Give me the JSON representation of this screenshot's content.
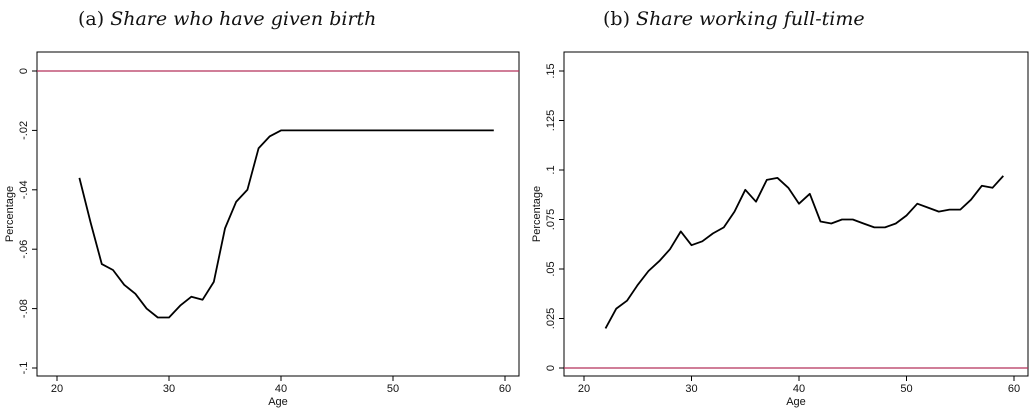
{
  "panels": [
    {
      "label": "(a)",
      "title": "Share who have given birth"
    },
    {
      "label": "(b)",
      "title": "Share working full-time"
    }
  ],
  "colors": {
    "series": "#000000",
    "reference_line": "#b5315a",
    "frame": "#000000"
  },
  "chart_data": [
    {
      "type": "line",
      "title": "Share who have given birth",
      "xlabel": "Age",
      "ylabel": "Percentage",
      "xlim": [
        20,
        60
      ],
      "ylim": [
        -0.1,
        0
      ],
      "xticks": [
        20,
        30,
        40,
        50,
        60
      ],
      "xtick_labels": [
        "20",
        "30",
        "40",
        "50",
        "60"
      ],
      "yticks": [
        0,
        -0.02,
        -0.04,
        -0.06,
        -0.08,
        -0.1
      ],
      "ytick_labels": [
        "0",
        "-.02",
        "-.04",
        "-.06",
        "-.08",
        "-.1"
      ],
      "grid": false,
      "reference_line": {
        "y": 0
      },
      "series": [
        {
          "x": [
            22,
            23,
            24,
            25,
            26,
            27,
            28,
            29,
            30,
            31,
            32,
            33,
            34,
            35,
            36,
            37,
            38,
            39,
            40,
            41,
            42,
            43,
            44,
            45,
            46,
            47,
            48,
            49,
            50,
            51,
            52,
            53,
            54,
            55,
            56,
            57,
            58,
            59
          ],
          "values": [
            -0.036,
            -0.051,
            -0.065,
            -0.067,
            -0.072,
            -0.075,
            -0.08,
            -0.083,
            -0.083,
            -0.079,
            -0.076,
            -0.077,
            -0.071,
            -0.053,
            -0.044,
            -0.04,
            -0.026,
            -0.022,
            -0.02,
            -0.02,
            -0.02,
            -0.02,
            -0.02,
            -0.02,
            -0.02,
            -0.02,
            -0.02,
            -0.02,
            -0.02,
            -0.02,
            -0.02,
            -0.02,
            -0.02,
            -0.02,
            -0.02,
            -0.02,
            -0.02,
            -0.02
          ]
        }
      ]
    },
    {
      "type": "line",
      "title": "Share working full-time",
      "xlabel": "Age",
      "ylabel": "Percentage",
      "xlim": [
        20,
        60
      ],
      "ylim": [
        0,
        0.15
      ],
      "xticks": [
        20,
        30,
        40,
        50,
        60
      ],
      "xtick_labels": [
        "20",
        "30",
        "40",
        "50",
        "60"
      ],
      "yticks": [
        0,
        0.025,
        0.05,
        0.075,
        0.1,
        0.125,
        0.15
      ],
      "ytick_labels": [
        "0",
        ".025",
        ".05",
        ".075",
        ".1",
        ".125",
        ".15"
      ],
      "grid": false,
      "reference_line": {
        "y": 0
      },
      "series": [
        {
          "x": [
            22,
            23,
            24,
            25,
            26,
            27,
            28,
            29,
            30,
            31,
            32,
            33,
            34,
            35,
            36,
            37,
            38,
            39,
            40,
            41,
            42,
            43,
            44,
            45,
            46,
            47,
            48,
            49,
            50,
            51,
            52,
            53,
            54,
            55,
            56,
            57,
            58,
            59
          ],
          "values": [
            0.02,
            0.03,
            0.034,
            0.042,
            0.049,
            0.054,
            0.06,
            0.069,
            0.062,
            0.064,
            0.068,
            0.071,
            0.079,
            0.09,
            0.084,
            0.095,
            0.096,
            0.091,
            0.083,
            0.088,
            0.074,
            0.073,
            0.075,
            0.075,
            0.073,
            0.071,
            0.071,
            0.073,
            0.077,
            0.083,
            0.081,
            0.079,
            0.08,
            0.08,
            0.085,
            0.092,
            0.091,
            0.097
          ]
        }
      ]
    }
  ]
}
